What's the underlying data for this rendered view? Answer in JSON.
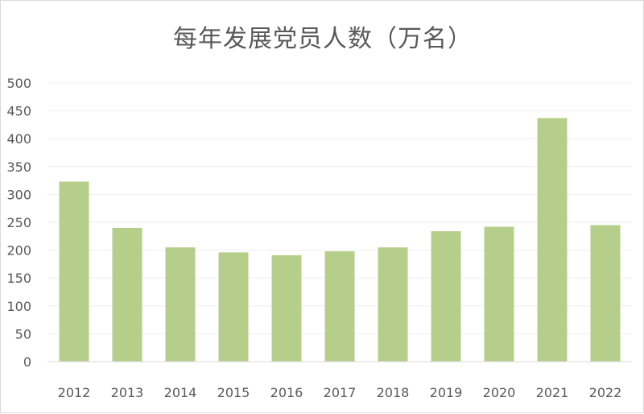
{
  "chart_data": {
    "type": "bar",
    "title": "每年发展党员人数（万名）",
    "categories": [
      "2012",
      "2013",
      "2014",
      "2015",
      "2016",
      "2017",
      "2018",
      "2019",
      "2020",
      "2021",
      "2022"
    ],
    "values": [
      323,
      240,
      205,
      196,
      191,
      198,
      205,
      234,
      242,
      437,
      245
    ],
    "ylim": [
      0,
      500
    ],
    "yticks": [
      "0",
      "50",
      "100",
      "150",
      "200",
      "250",
      "300",
      "350",
      "400",
      "450",
      "500"
    ],
    "grid": true,
    "bar_color": "#b5cf8b",
    "grid_color": "#eeeeee",
    "axis_color": "#d9d9d9"
  }
}
